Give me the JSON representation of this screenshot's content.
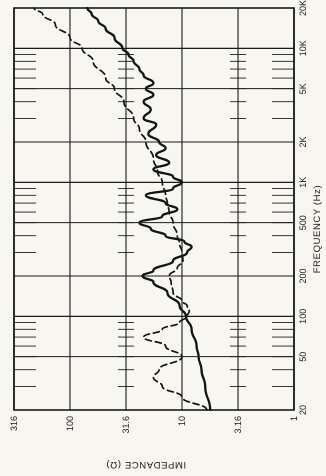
{
  "chart_data": {
    "type": "line",
    "xscale": "log",
    "yscale": "log",
    "xlabel": "FREQUENCY (Hz)",
    "ylabel": "IMPEDANCE (Ω)",
    "xlim": [
      20,
      20000
    ],
    "ylim": [
      1,
      316
    ],
    "x_ticks": [
      20,
      50,
      100,
      200,
      500,
      1000,
      2000,
      5000,
      10000,
      20000
    ],
    "x_tick_labels": [
      "20",
      "50",
      "100",
      "200",
      "500",
      "1K",
      "2K",
      "5K",
      "10K",
      "20K"
    ],
    "y_ticks": [
      1,
      3.16,
      10,
      31.6,
      100,
      316
    ],
    "y_tick_labels": [
      "1",
      "3.16",
      "10",
      "31.6",
      "100",
      "316"
    ],
    "grid": true,
    "series": [
      {
        "style": "solid",
        "x": [
          20,
          30,
          40,
          50,
          60,
          80,
          100,
          120,
          150,
          180,
          200,
          220,
          260,
          300,
          330,
          360,
          400,
          450,
          500,
          560,
          630,
          700,
          800,
          900,
          1000,
          1100,
          1250,
          1400,
          1600,
          1800,
          2000,
          2300,
          2700,
          3000,
          3500,
          4000,
          4500,
          5000,
          5500,
          6300,
          7000,
          8000,
          9000,
          10000,
          12000,
          14000,
          16000,
          18000,
          20000
        ],
        "y": [
          5.6,
          6.2,
          6.7,
          7.1,
          7.4,
          8.2,
          9.2,
          10.5,
          13.5,
          18,
          22.5,
          18,
          12,
          9,
          8.2,
          9.5,
          14,
          19,
          24,
          15,
          11,
          14,
          21,
          12,
          10,
          12,
          18,
          13,
          17,
          14,
          16,
          20,
          17,
          22,
          19,
          22,
          18,
          21,
          18,
          22,
          24,
          27,
          30,
          34,
          40,
          48,
          56,
          64,
          70
        ]
      },
      {
        "style": "dashed",
        "x": [
          20,
          25,
          30,
          35,
          40,
          50,
          60,
          70,
          80,
          90,
          100,
          110,
          120,
          130,
          150,
          180,
          200,
          230,
          260,
          300,
          350,
          400,
          500,
          600,
          700,
          800,
          1000,
          1200,
          1500,
          2000,
          2500,
          3000,
          4000,
          5000,
          6000,
          8000,
          10000,
          12000,
          15000,
          18000,
          20000
        ],
        "y": [
          6,
          10,
          15,
          18,
          16,
          10,
          14,
          22,
          15,
          10.5,
          9,
          8.6,
          9,
          10,
          12,
          12.5,
          13,
          11,
          9.8,
          10,
          10.5,
          11,
          12,
          13,
          13.5,
          14,
          15,
          16.5,
          18,
          21,
          24,
          27,
          33,
          40,
          48,
          62,
          78,
          100,
          135,
          175,
          210
        ]
      }
    ]
  }
}
